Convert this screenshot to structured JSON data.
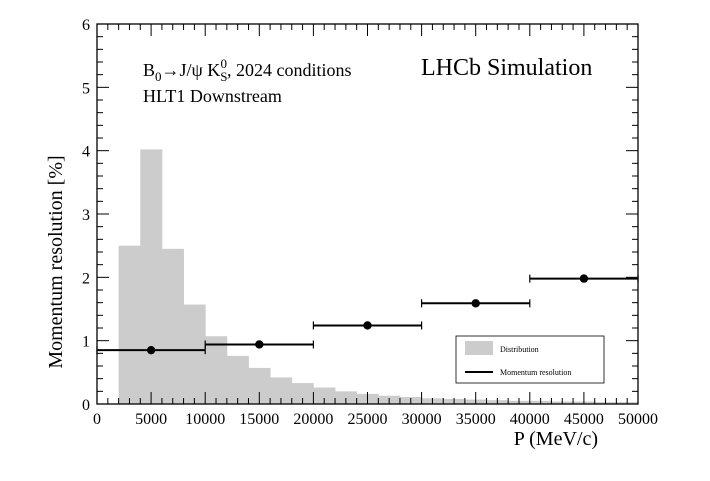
{
  "chart_data": {
    "type": "bar",
    "xlabel": "P (MeV/c)",
    "ylabel": "Momentum resolution [%]",
    "xlim": [
      0,
      50000
    ],
    "ylim": [
      0,
      6
    ],
    "x_ticks": [
      "0",
      "5000",
      "10000",
      "15000",
      "20000",
      "25000",
      "30000",
      "35000",
      "40000",
      "45000",
      "50000"
    ],
    "y_ticks": [
      "0",
      "1",
      "2",
      "3",
      "4",
      "5",
      "6"
    ],
    "annotations": {
      "experiment": "LHCb Simulation",
      "decay_prefix": "B",
      "decay_sub": "0",
      "decay_mid": "→J/ψ K",
      "decay_sub2": "S",
      "decay_sup2": "0",
      "decay_suffix": ", 2024 conditions",
      "trigger": "HLT1 Downstream"
    },
    "legend": {
      "placement": "lower-right",
      "entries": [
        "Distribution",
        "Momentum resolution"
      ]
    },
    "series": [
      {
        "name": "Distribution",
        "kind": "histogram",
        "color": "#cccccc",
        "bin_edges": [
          2000,
          4000,
          6000,
          8000,
          10000,
          12000,
          14000,
          16000,
          18000,
          20000,
          22000,
          24000,
          26000,
          28000,
          30000,
          32000,
          34000,
          36000,
          38000,
          40000,
          42000,
          44000,
          46000,
          48000,
          50000
        ],
        "values": [
          2.5,
          4.02,
          2.45,
          1.57,
          1.07,
          0.76,
          0.57,
          0.42,
          0.33,
          0.26,
          0.2,
          0.16,
          0.13,
          0.11,
          0.09,
          0.08,
          0.07,
          0.06,
          0.05,
          0.05,
          0.04,
          0.04,
          0.03,
          0.03
        ]
      },
      {
        "name": "Momentum resolution",
        "kind": "points_with_xerr",
        "color": "#000000",
        "points": [
          {
            "x": 5000,
            "y": 0.85,
            "xlo": 0,
            "xhi": 10000
          },
          {
            "x": 15000,
            "y": 0.94,
            "xlo": 10000,
            "xhi": 20000
          },
          {
            "x": 25000,
            "y": 1.24,
            "xlo": 20000,
            "xhi": 30000
          },
          {
            "x": 35000,
            "y": 1.59,
            "xlo": 30000,
            "xhi": 40000
          },
          {
            "x": 45000,
            "y": 1.98,
            "xlo": 40000,
            "xhi": 50000
          }
        ]
      }
    ]
  }
}
